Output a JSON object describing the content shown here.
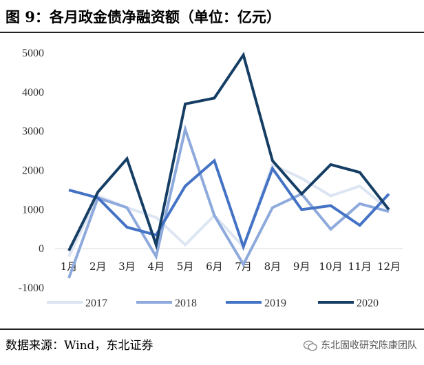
{
  "figure_title": "图 9：各月政金债净融资额（单位：亿元）",
  "source": "数据来源：Wind，东北证券",
  "watermark": "东北固收研究陈康团队",
  "chart_data": {
    "type": "line",
    "title": "",
    "xlabel": "",
    "ylabel": "",
    "categories": [
      "1月",
      "2月",
      "3月",
      "4月",
      "5月",
      "6月",
      "7月",
      "8月",
      "9月",
      "10月",
      "11月",
      "12月"
    ],
    "ylim": [
      -1000,
      5000
    ],
    "yticks": [
      -1000,
      0,
      1000,
      2000,
      3000,
      4000,
      5000
    ],
    "grid": false,
    "legend_position": "bottom",
    "series": [
      {
        "name": "2017",
        "color": "#dde5f2",
        "values": [
          -200,
          1350,
          1050,
          800,
          100,
          850,
          50,
          2150,
          1800,
          1350,
          1600,
          1000
        ]
      },
      {
        "name": "2018",
        "color": "#8eaadc",
        "values": [
          -750,
          1300,
          1050,
          -200,
          3050,
          850,
          -400,
          1050,
          1400,
          500,
          1150,
          950
        ]
      },
      {
        "name": "2019",
        "color": "#4472c4",
        "values": [
          1500,
          1300,
          550,
          350,
          1600,
          2250,
          50,
          2050,
          1000,
          1100,
          600,
          1400
        ]
      },
      {
        "name": "2020",
        "color": "#163e64",
        "values": [
          -50,
          1450,
          2300,
          100,
          3700,
          3850,
          4950,
          2250,
          1400,
          2150,
          1950,
          1000
        ]
      }
    ]
  }
}
